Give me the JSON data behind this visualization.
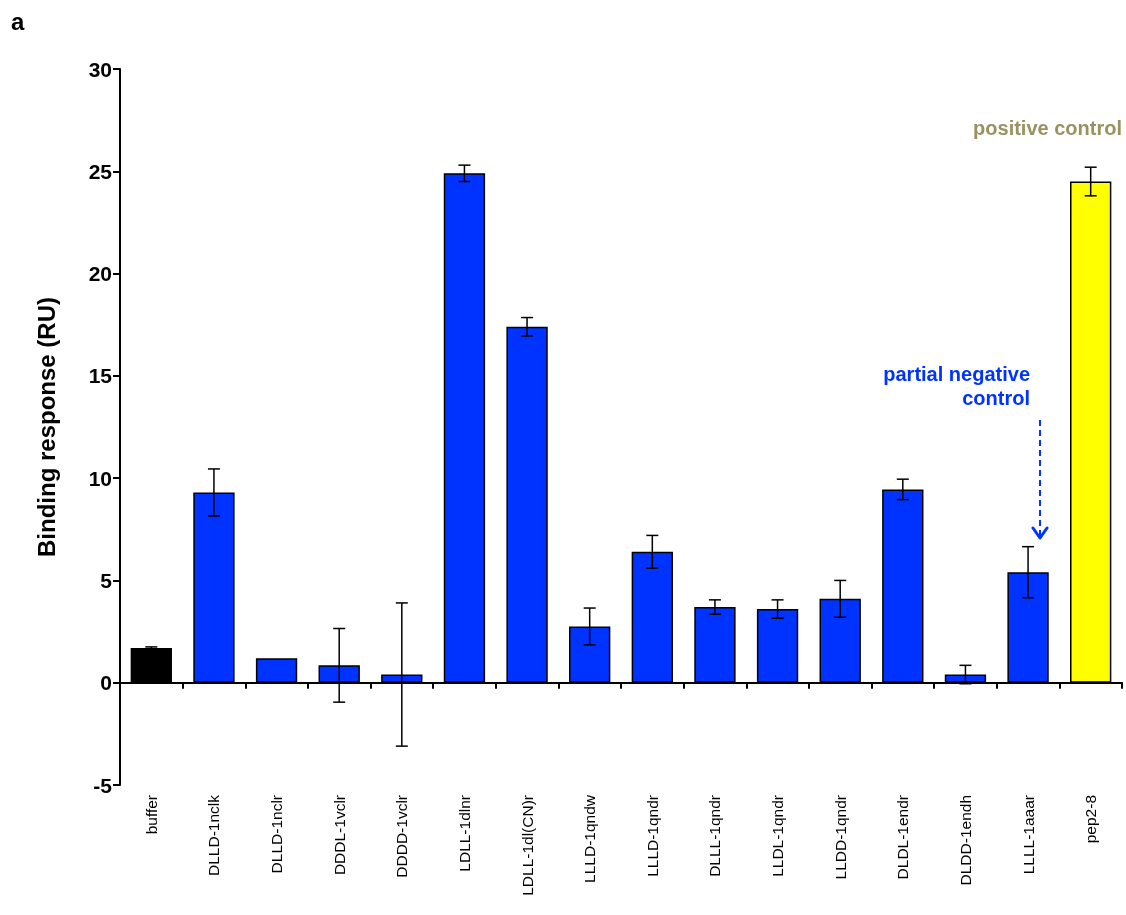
{
  "chart_data": {
    "type": "bar",
    "title": "a",
    "ylabel": "Binding response (RU)",
    "categories": [
      "buffer",
      "DLLD-1nclk",
      "DLLD-1nclr",
      "DDDL-1vclr",
      "DDDD-1vclr",
      "LDLL-1dlnr",
      "LDLL-1dl(CN)r",
      "LLLD-1qndw",
      "LLLD-1qndr",
      "DLLL-1qndr",
      "LLDL-1qndr",
      "LLDD-1qndr",
      "DLDL-1endr",
      "DLDD-1endh",
      "LLLL-1aaar",
      "pep2-8"
    ],
    "values": [
      1.7,
      9.3,
      1.2,
      0.85,
      0.4,
      24.9,
      17.4,
      2.75,
      6.4,
      3.7,
      3.6,
      4.1,
      9.45,
      0.4,
      5.4,
      24.5
    ],
    "errors": [
      0.05,
      1.15,
      null,
      1.8,
      3.5,
      0.4,
      0.45,
      0.9,
      0.8,
      0.35,
      0.45,
      0.9,
      0.5,
      0.45,
      1.25,
      0.7
    ],
    "colors": [
      "#000000",
      "#0033ff",
      "#0033ff",
      "#0033ff",
      "#0033ff",
      "#0033ff",
      "#0033ff",
      "#0033ff",
      "#0033ff",
      "#0033ff",
      "#0033ff",
      "#0033ff",
      "#0033ff",
      "#0033ff",
      "#0033ff",
      "#ffff00"
    ],
    "ylim": [
      -5,
      30
    ],
    "yticks": [
      -5,
      0,
      5,
      10,
      15,
      20,
      25,
      30
    ],
    "annotations": [
      "positive control",
      "partial negative control"
    ]
  }
}
